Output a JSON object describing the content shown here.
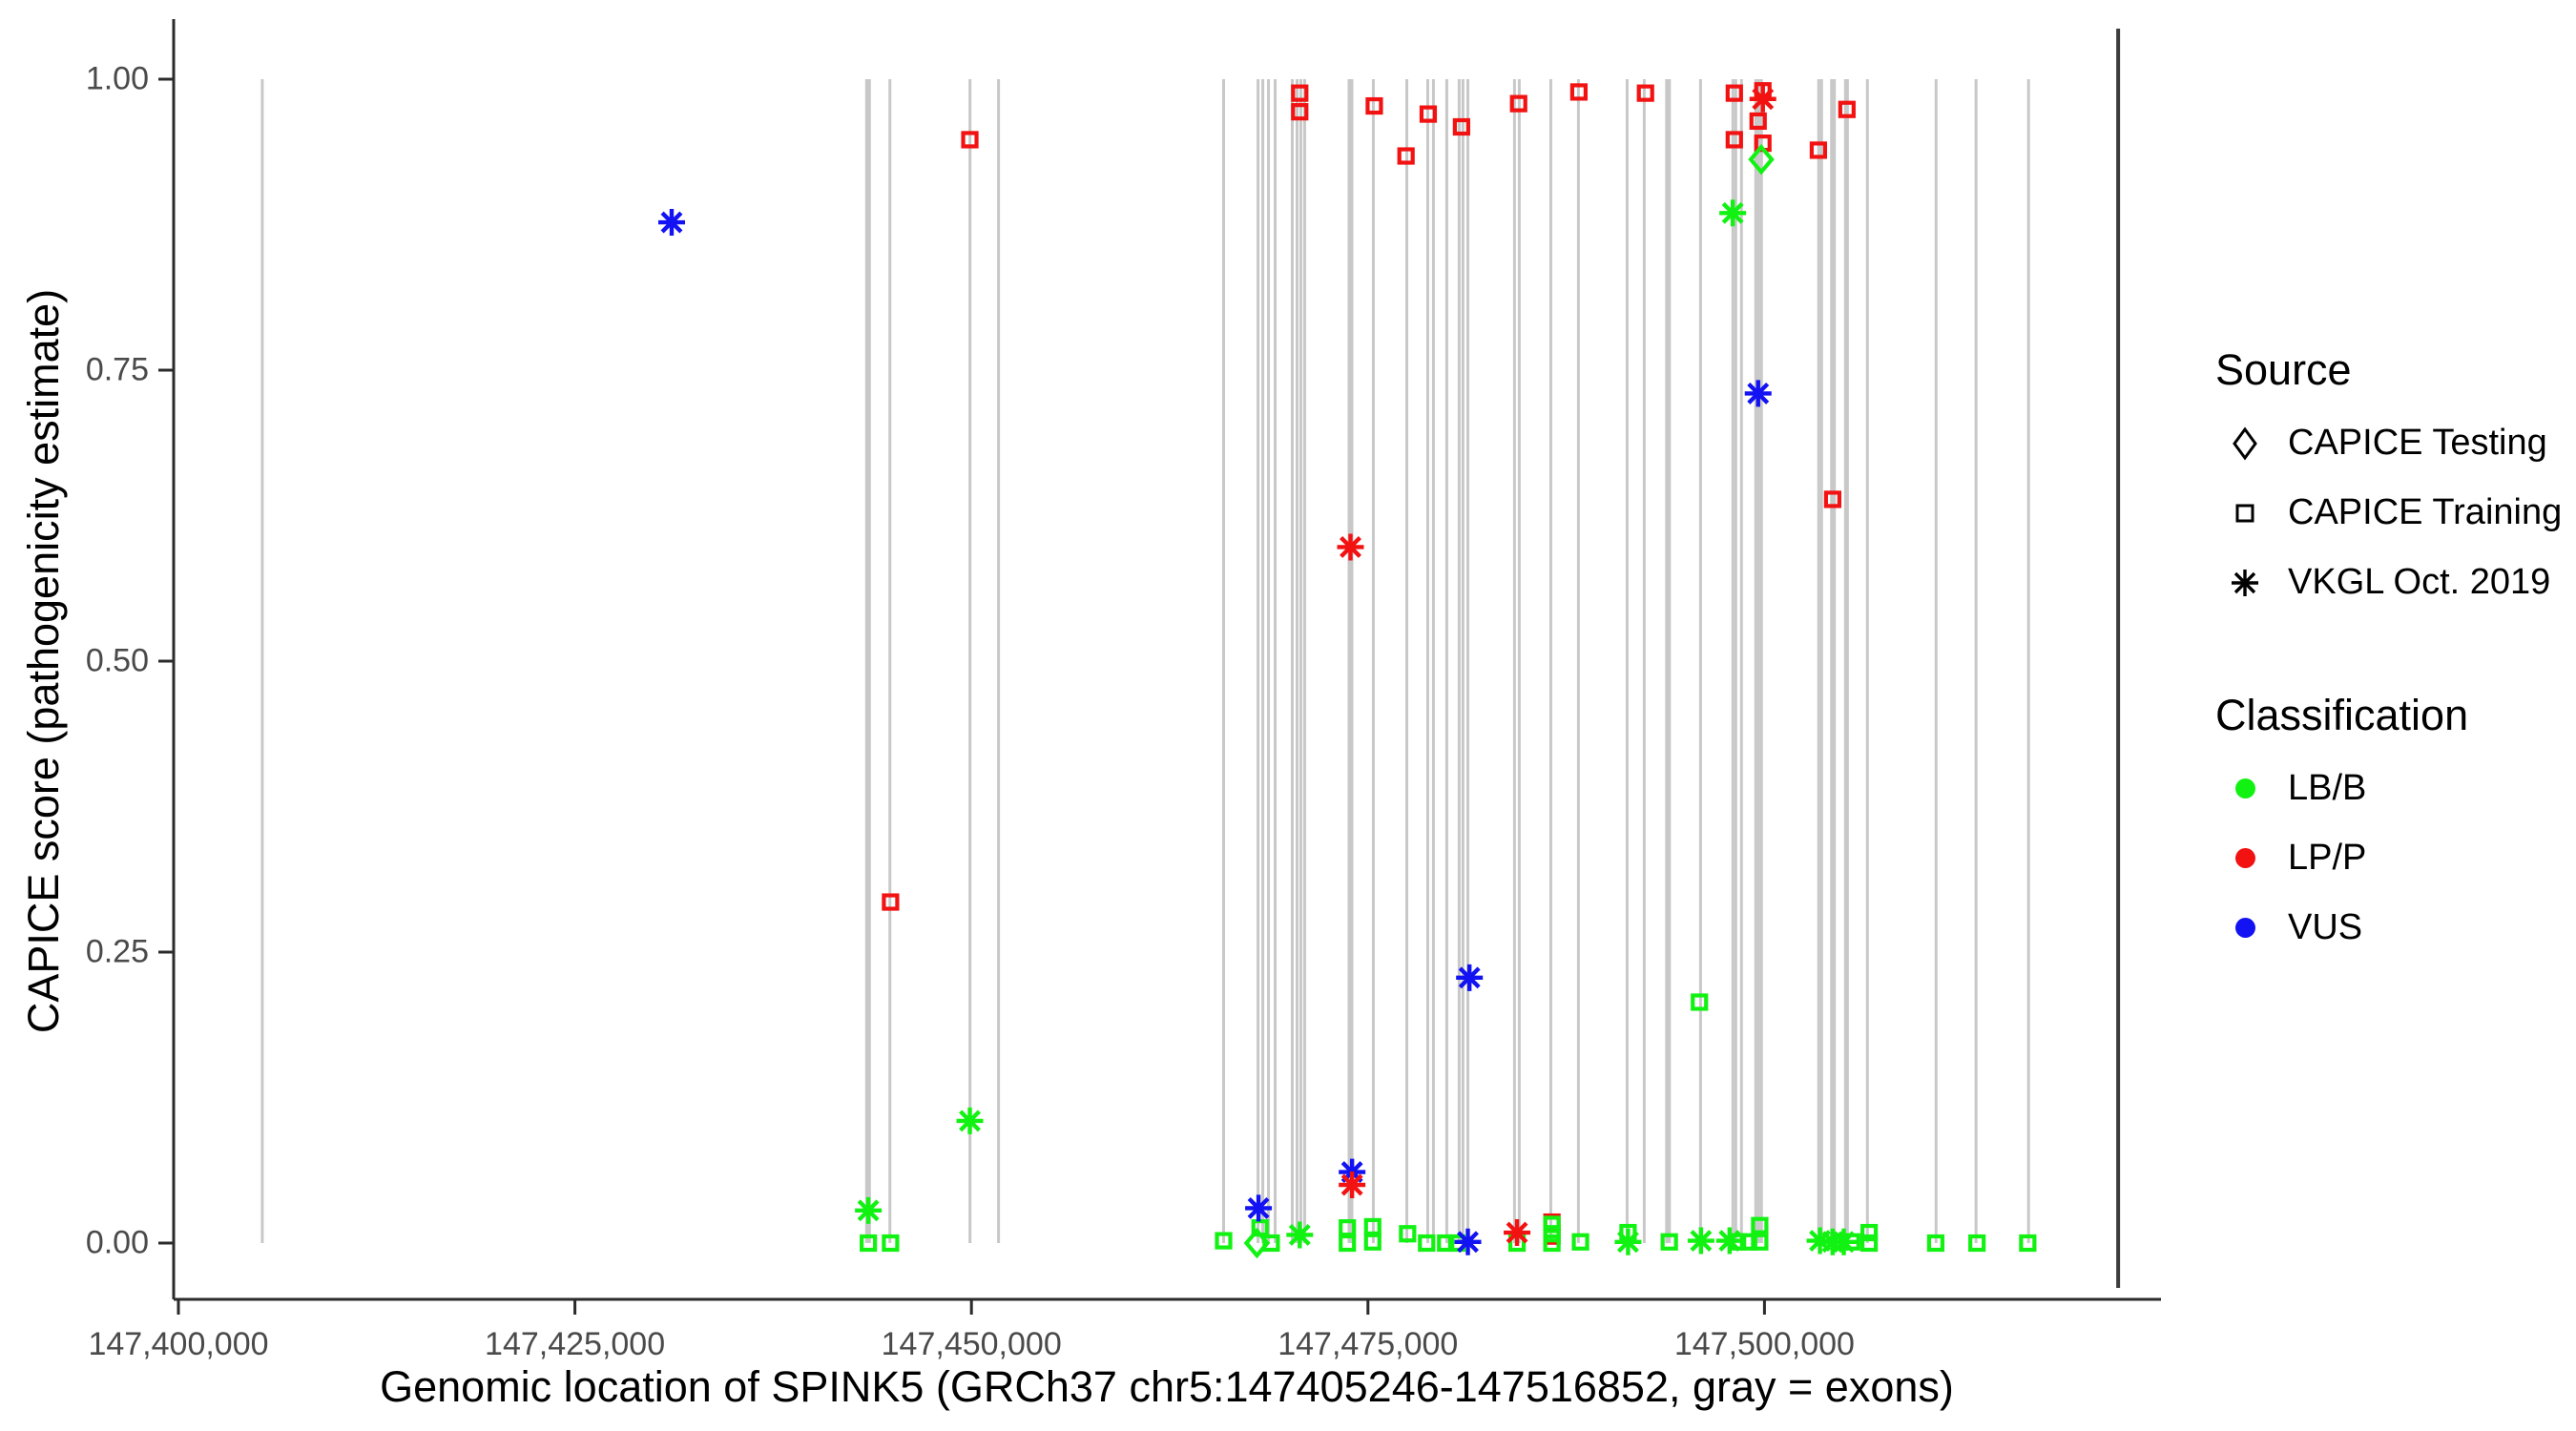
{
  "axes": {
    "x": {
      "title": "Genomic location of SPINK5 (GRCh37 chr5:147405246-147516852, gray = exons)",
      "ticks": [
        {
          "label": "147,400,000",
          "pos": 147400000
        },
        {
          "label": "147,425,000",
          "pos": 147425000
        },
        {
          "label": "147,450,000",
          "pos": 147450000
        },
        {
          "label": "147,475,000",
          "pos": 147475000
        },
        {
          "label": "147,500,000",
          "pos": 147500000
        }
      ]
    },
    "y": {
      "title": "CAPICE score (pathogenicity estimate)",
      "ticks": [
        {
          "label": "1.00",
          "value": 1.0
        },
        {
          "label": "0.75",
          "value": 0.75
        },
        {
          "label": "0.50",
          "value": 0.5
        },
        {
          "label": "0.25",
          "value": 0.25
        },
        {
          "label": "0.00",
          "value": 0.0
        }
      ]
    }
  },
  "legend": {
    "source": {
      "title": "Source",
      "items": [
        {
          "label": "CAPICE Testing",
          "shape": "diamond"
        },
        {
          "label": "CAPICE Training",
          "shape": "square"
        },
        {
          "label": "VKGL Oct. 2019",
          "shape": "asterisk"
        }
      ]
    },
    "classification": {
      "title": "Classification",
      "items": [
        {
          "label": "LB/B",
          "color": "#12F212"
        },
        {
          "label": "LP/P",
          "color": "#F21212"
        },
        {
          "label": "VUS",
          "color": "#1212F2"
        }
      ]
    }
  },
  "chart_data": {
    "type": "scatter",
    "title": "",
    "xlabel": "Genomic location of SPINK5 (GRCh37 chr5:147405246-147516852, gray = exons)",
    "ylabel": "CAPICE score (pathogenicity estimate)",
    "xlim": [
      147399700,
      147525000
    ],
    "ylim": [
      0.0,
      1.0
    ],
    "grid": false,
    "legend_position": "right",
    "colors": {
      "LB/B": "#12F212",
      "LP/P": "#F21212",
      "VUS": "#1212F2",
      "exon": "#C8C8C8",
      "exon_dark": "#3C3C3C",
      "axis": "#2B2B2B",
      "tick_text": "#4A4A4A"
    },
    "shapes": {
      "CAPICE Testing": "diamond",
      "CAPICE Training": "square",
      "VKGL Oct. 2019": "asterisk"
    },
    "points": [
      {
        "pos": 147470700,
        "score": 0.988,
        "source": "CAPICE Training",
        "class": "LP/P"
      },
      {
        "pos": 147470700,
        "score": 0.972,
        "source": "CAPICE Training",
        "class": "LP/P"
      },
      {
        "pos": 147475400,
        "score": 0.977,
        "source": "CAPICE Training",
        "class": "LP/P"
      },
      {
        "pos": 147477400,
        "score": 0.934,
        "source": "CAPICE Training",
        "class": "LP/P"
      },
      {
        "pos": 147478800,
        "score": 0.97,
        "source": "CAPICE Training",
        "class": "LP/P"
      },
      {
        "pos": 147480900,
        "score": 0.959,
        "source": "CAPICE Training",
        "class": "LP/P"
      },
      {
        "pos": 147484500,
        "score": 0.979,
        "source": "CAPICE Training",
        "class": "LP/P"
      },
      {
        "pos": 147488300,
        "score": 0.989,
        "source": "CAPICE Training",
        "class": "LP/P"
      },
      {
        "pos": 147492500,
        "score": 0.988,
        "source": "CAPICE Training",
        "class": "LP/P"
      },
      {
        "pos": 147498100,
        "score": 0.988,
        "source": "CAPICE Training",
        "class": "LP/P"
      },
      {
        "pos": 147499900,
        "score": 0.99,
        "source": "CAPICE Training",
        "class": "LP/P"
      },
      {
        "pos": 147499600,
        "score": 0.964,
        "source": "CAPICE Training",
        "class": "LP/P"
      },
      {
        "pos": 147498100,
        "score": 0.948,
        "source": "CAPICE Training",
        "class": "LP/P"
      },
      {
        "pos": 147499900,
        "score": 0.945,
        "source": "CAPICE Training",
        "class": "LP/P"
      },
      {
        "pos": 147503400,
        "score": 0.939,
        "source": "CAPICE Training",
        "class": "LP/P"
      },
      {
        "pos": 147505200,
        "score": 0.974,
        "source": "CAPICE Training",
        "class": "LP/P"
      },
      {
        "pos": 147449900,
        "score": 0.948,
        "source": "CAPICE Training",
        "class": "LP/P"
      },
      {
        "pos": 147504300,
        "score": 0.639,
        "source": "CAPICE Training",
        "class": "LP/P"
      },
      {
        "pos": 147444900,
        "score": 0.293,
        "source": "CAPICE Training",
        "class": "LP/P"
      },
      {
        "pos": 147486600,
        "score": 0.018,
        "source": "CAPICE Training",
        "class": "LP/P"
      },
      {
        "pos": 147486600,
        "score": 0.006,
        "source": "CAPICE Training",
        "class": "LP/P"
      },
      {
        "pos": 147443500,
        "score": 0.0,
        "source": "CAPICE Training",
        "class": "LB/B"
      },
      {
        "pos": 147444900,
        "score": 0.0,
        "source": "CAPICE Training",
        "class": "LB/B"
      },
      {
        "pos": 147465900,
        "score": 0.002,
        "source": "CAPICE Training",
        "class": "LB/B"
      },
      {
        "pos": 147468200,
        "score": 0.013,
        "source": "CAPICE Training",
        "class": "LB/B"
      },
      {
        "pos": 147468900,
        "score": 0.0,
        "source": "CAPICE Training",
        "class": "LB/B"
      },
      {
        "pos": 147473700,
        "score": 0.013,
        "source": "CAPICE Training",
        "class": "LB/B"
      },
      {
        "pos": 147473700,
        "score": 0.0,
        "source": "CAPICE Training",
        "class": "LB/B"
      },
      {
        "pos": 147475300,
        "score": 0.014,
        "source": "CAPICE Training",
        "class": "LB/B"
      },
      {
        "pos": 147475300,
        "score": 0.001,
        "source": "CAPICE Training",
        "class": "LB/B"
      },
      {
        "pos": 147477500,
        "score": 0.008,
        "source": "CAPICE Training",
        "class": "LB/B"
      },
      {
        "pos": 147478700,
        "score": 0.0,
        "source": "CAPICE Training",
        "class": "LB/B"
      },
      {
        "pos": 147479900,
        "score": 0.0,
        "source": "CAPICE Training",
        "class": "LB/B"
      },
      {
        "pos": 147480600,
        "score": 0.0,
        "source": "CAPICE Training",
        "class": "LB/B"
      },
      {
        "pos": 147484400,
        "score": 0.0,
        "source": "CAPICE Training",
        "class": "LB/B"
      },
      {
        "pos": 147486600,
        "score": 0.016,
        "source": "CAPICE Training",
        "class": "LB/B"
      },
      {
        "pos": 147486600,
        "score": 0.008,
        "source": "CAPICE Training",
        "class": "LB/B"
      },
      {
        "pos": 147486600,
        "score": 0.0,
        "source": "CAPICE Training",
        "class": "LB/B"
      },
      {
        "pos": 147488400,
        "score": 0.001,
        "source": "CAPICE Training",
        "class": "LB/B"
      },
      {
        "pos": 147491400,
        "score": 0.009,
        "source": "CAPICE Training",
        "class": "LB/B"
      },
      {
        "pos": 147494000,
        "score": 0.001,
        "source": "CAPICE Training",
        "class": "LB/B"
      },
      {
        "pos": 147495900,
        "score": 0.207,
        "source": "CAPICE Training",
        "class": "LB/B"
      },
      {
        "pos": 147498300,
        "score": 0.001,
        "source": "CAPICE Training",
        "class": "LB/B"
      },
      {
        "pos": 147499000,
        "score": 0.001,
        "source": "CAPICE Training",
        "class": "LB/B"
      },
      {
        "pos": 147499700,
        "score": 0.015,
        "source": "CAPICE Training",
        "class": "LB/B"
      },
      {
        "pos": 147499700,
        "score": 0.001,
        "source": "CAPICE Training",
        "class": "LB/B"
      },
      {
        "pos": 147504700,
        "score": 0.001,
        "source": "CAPICE Training",
        "class": "LB/B"
      },
      {
        "pos": 147505500,
        "score": 0.001,
        "source": "CAPICE Training",
        "class": "LB/B"
      },
      {
        "pos": 147506600,
        "score": 0.009,
        "source": "CAPICE Training",
        "class": "LB/B"
      },
      {
        "pos": 147506600,
        "score": 0.0,
        "source": "CAPICE Training",
        "class": "LB/B"
      },
      {
        "pos": 147510800,
        "score": 0.0,
        "source": "CAPICE Training",
        "class": "LB/B"
      },
      {
        "pos": 147513400,
        "score": 0.0,
        "source": "CAPICE Training",
        "class": "LB/B"
      },
      {
        "pos": 147516600,
        "score": 0.0,
        "source": "CAPICE Training",
        "class": "LB/B"
      },
      {
        "pos": 147468000,
        "score": 0.0,
        "source": "CAPICE Testing",
        "class": "LB/B"
      },
      {
        "pos": 147499800,
        "score": 0.931,
        "source": "CAPICE Testing",
        "class": "LB/B"
      },
      {
        "pos": 147443500,
        "score": 0.028,
        "source": "VKGL Oct. 2019",
        "class": "LB/B"
      },
      {
        "pos": 147449900,
        "score": 0.105,
        "source": "VKGL Oct. 2019",
        "class": "LB/B"
      },
      {
        "pos": 147470700,
        "score": 0.007,
        "source": "VKGL Oct. 2019",
        "class": "LB/B"
      },
      {
        "pos": 147491400,
        "score": 0.001,
        "source": "VKGL Oct. 2019",
        "class": "LB/B"
      },
      {
        "pos": 147496000,
        "score": 0.002,
        "source": "VKGL Oct. 2019",
        "class": "LB/B"
      },
      {
        "pos": 147497800,
        "score": 0.002,
        "source": "VKGL Oct. 2019",
        "class": "LB/B"
      },
      {
        "pos": 147498000,
        "score": 0.885,
        "source": "VKGL Oct. 2019",
        "class": "LB/B"
      },
      {
        "pos": 147503500,
        "score": 0.002,
        "source": "VKGL Oct. 2019",
        "class": "LB/B"
      },
      {
        "pos": 147504300,
        "score": 0.001,
        "source": "VKGL Oct. 2019",
        "class": "LB/B"
      },
      {
        "pos": 147505000,
        "score": 0.001,
        "source": "VKGL Oct. 2019",
        "class": "LB/B"
      },
      {
        "pos": 147431100,
        "score": 0.877,
        "source": "VKGL Oct. 2019",
        "class": "VUS"
      },
      {
        "pos": 147499600,
        "score": 0.73,
        "source": "VKGL Oct. 2019",
        "class": "VUS"
      },
      {
        "pos": 147481400,
        "score": 0.228,
        "source": "VKGL Oct. 2019",
        "class": "VUS"
      },
      {
        "pos": 147474000,
        "score": 0.061,
        "source": "VKGL Oct. 2019",
        "class": "VUS"
      },
      {
        "pos": 147468100,
        "score": 0.03,
        "source": "VKGL Oct. 2019",
        "class": "VUS"
      },
      {
        "pos": 147481300,
        "score": 0.001,
        "source": "VKGL Oct. 2019",
        "class": "VUS"
      },
      {
        "pos": 147499900,
        "score": 0.983,
        "source": "VKGL Oct. 2019",
        "class": "LP/P"
      },
      {
        "pos": 147473900,
        "score": 0.598,
        "source": "VKGL Oct. 2019",
        "class": "LP/P"
      },
      {
        "pos": 147474000,
        "score": 0.05,
        "source": "VKGL Oct. 2019",
        "class": "LP/P"
      },
      {
        "pos": 147484400,
        "score": 0.009,
        "source": "VKGL Oct. 2019",
        "class": "LP/P"
      }
    ],
    "exons": [
      {
        "pos": 147405290,
        "weight": "thin"
      },
      {
        "pos": 147443480,
        "weight": "thick"
      },
      {
        "pos": 147444860,
        "weight": "thin"
      },
      {
        "pos": 147449910,
        "weight": "thin"
      },
      {
        "pos": 147451710,
        "weight": "thin"
      },
      {
        "pos": 147465900,
        "weight": "thin"
      },
      {
        "pos": 147468070,
        "weight": "thin"
      },
      {
        "pos": 147468370,
        "weight": "thin"
      },
      {
        "pos": 147468730,
        "weight": "thin"
      },
      {
        "pos": 147469150,
        "weight": "thin"
      },
      {
        "pos": 147470230,
        "weight": "thin"
      },
      {
        "pos": 147470530,
        "weight": "thin"
      },
      {
        "pos": 147470770,
        "weight": "thin"
      },
      {
        "pos": 147471010,
        "weight": "thin"
      },
      {
        "pos": 147473900,
        "weight": "thick"
      },
      {
        "pos": 147475340,
        "weight": "thin"
      },
      {
        "pos": 147477450,
        "weight": "thin"
      },
      {
        "pos": 147478770,
        "weight": "thin"
      },
      {
        "pos": 147479130,
        "weight": "thin"
      },
      {
        "pos": 147479970,
        "weight": "thin"
      },
      {
        "pos": 147480750,
        "weight": "thin"
      },
      {
        "pos": 147480990,
        "weight": "thin"
      },
      {
        "pos": 147481300,
        "weight": "thin"
      },
      {
        "pos": 147484240,
        "weight": "thin"
      },
      {
        "pos": 147484540,
        "weight": "thin"
      },
      {
        "pos": 147486530,
        "weight": "thin"
      },
      {
        "pos": 147488270,
        "weight": "thin"
      },
      {
        "pos": 147491340,
        "weight": "thin"
      },
      {
        "pos": 147492420,
        "weight": "thin"
      },
      {
        "pos": 147493920,
        "weight": "thick"
      },
      {
        "pos": 147495970,
        "weight": "thin"
      },
      {
        "pos": 147498010,
        "weight": "thin"
      },
      {
        "pos": 147498190,
        "weight": "thin"
      },
      {
        "pos": 147498550,
        "weight": "thin"
      },
      {
        "pos": 147499450,
        "weight": "thin"
      },
      {
        "pos": 147499630,
        "weight": "thin"
      },
      {
        "pos": 147499810,
        "weight": "thin"
      },
      {
        "pos": 147503420,
        "weight": "thin"
      },
      {
        "pos": 147503600,
        "weight": "thin"
      },
      {
        "pos": 147504320,
        "weight": "thick"
      },
      {
        "pos": 147505110,
        "weight": "thin"
      },
      {
        "pos": 147505230,
        "weight": "thin"
      },
      {
        "pos": 147506490,
        "weight": "thin"
      },
      {
        "pos": 147510820,
        "weight": "thin"
      },
      {
        "pos": 147513340,
        "weight": "thin"
      },
      {
        "pos": 147516650,
        "weight": "thin"
      },
      {
        "pos": 147522300,
        "weight": "dark"
      }
    ]
  }
}
